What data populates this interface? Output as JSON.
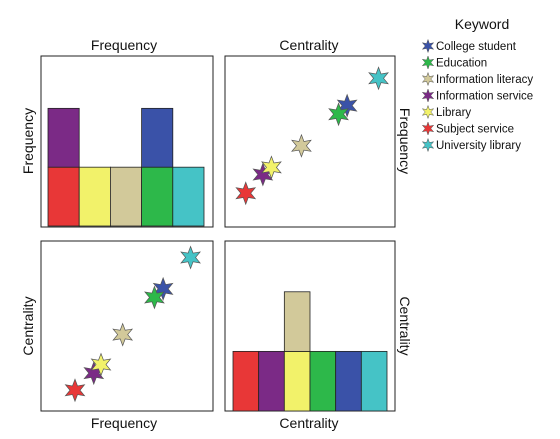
{
  "chart_data": {
    "type": "scatter-matrix",
    "variables": [
      "Frequency",
      "Centrality"
    ],
    "legend": {
      "title": "Keyword",
      "position": "top-right",
      "entries": [
        {
          "name": "College student",
          "color": "#3a52a8"
        },
        {
          "name": "Education",
          "color": "#2db84a"
        },
        {
          "name": "Information literacy",
          "color": "#d2c99a"
        },
        {
          "name": "Information service",
          "color": "#7b2a86"
        },
        {
          "name": "Library",
          "color": "#f2f26a"
        },
        {
          "name": "Subject service",
          "color": "#e83737"
        },
        {
          "name": "University library",
          "color": "#45c3c6"
        }
      ]
    },
    "points": [
      {
        "keyword": "College student",
        "frequency": 0.75,
        "centrality": 0.76
      },
      {
        "keyword": "Education",
        "frequency": 0.69,
        "centrality": 0.7
      },
      {
        "keyword": "Information literacy",
        "frequency": 0.47,
        "centrality": 0.44
      },
      {
        "keyword": "Information service",
        "frequency": 0.27,
        "centrality": 0.17
      },
      {
        "keyword": "Library",
        "frequency": 0.32,
        "centrality": 0.23
      },
      {
        "keyword": "Subject service",
        "frequency": 0.14,
        "centrality": 0.05
      },
      {
        "keyword": "University library",
        "frequency": 0.94,
        "centrality": 0.98
      }
    ],
    "histograms": {
      "frequency": {
        "title": "Frequency",
        "ylabel": "Frequency",
        "stacks": [
          [
            "Subject service",
            "Information service"
          ],
          [
            "Library"
          ],
          [
            "Information literacy"
          ],
          [
            "Education",
            "College student"
          ],
          [
            "University library"
          ]
        ],
        "ylim": [
          0,
          2.55
        ]
      },
      "centrality": {
        "title": "Centrality",
        "ylabel": "Centrality",
        "stacks": [
          [
            "Subject service"
          ],
          [
            "Information service"
          ],
          [
            "Library",
            "Information literacy"
          ],
          [
            "Education"
          ],
          [
            "College student"
          ],
          [
            "University library"
          ]
        ],
        "ylim": [
          0,
          2.55
        ]
      }
    },
    "panel_labels": {
      "top_left_title": "Frequency",
      "top_right_title": "Centrality",
      "top_left_ylabel": "Frequency",
      "top_right_ylabel": "Frequency",
      "bottom_left_ylabel": "Centrality",
      "bottom_right_ylabel": "Centrality",
      "bottom_left_xlabel": "Frequency",
      "bottom_right_xlabel": "Centrality"
    }
  }
}
